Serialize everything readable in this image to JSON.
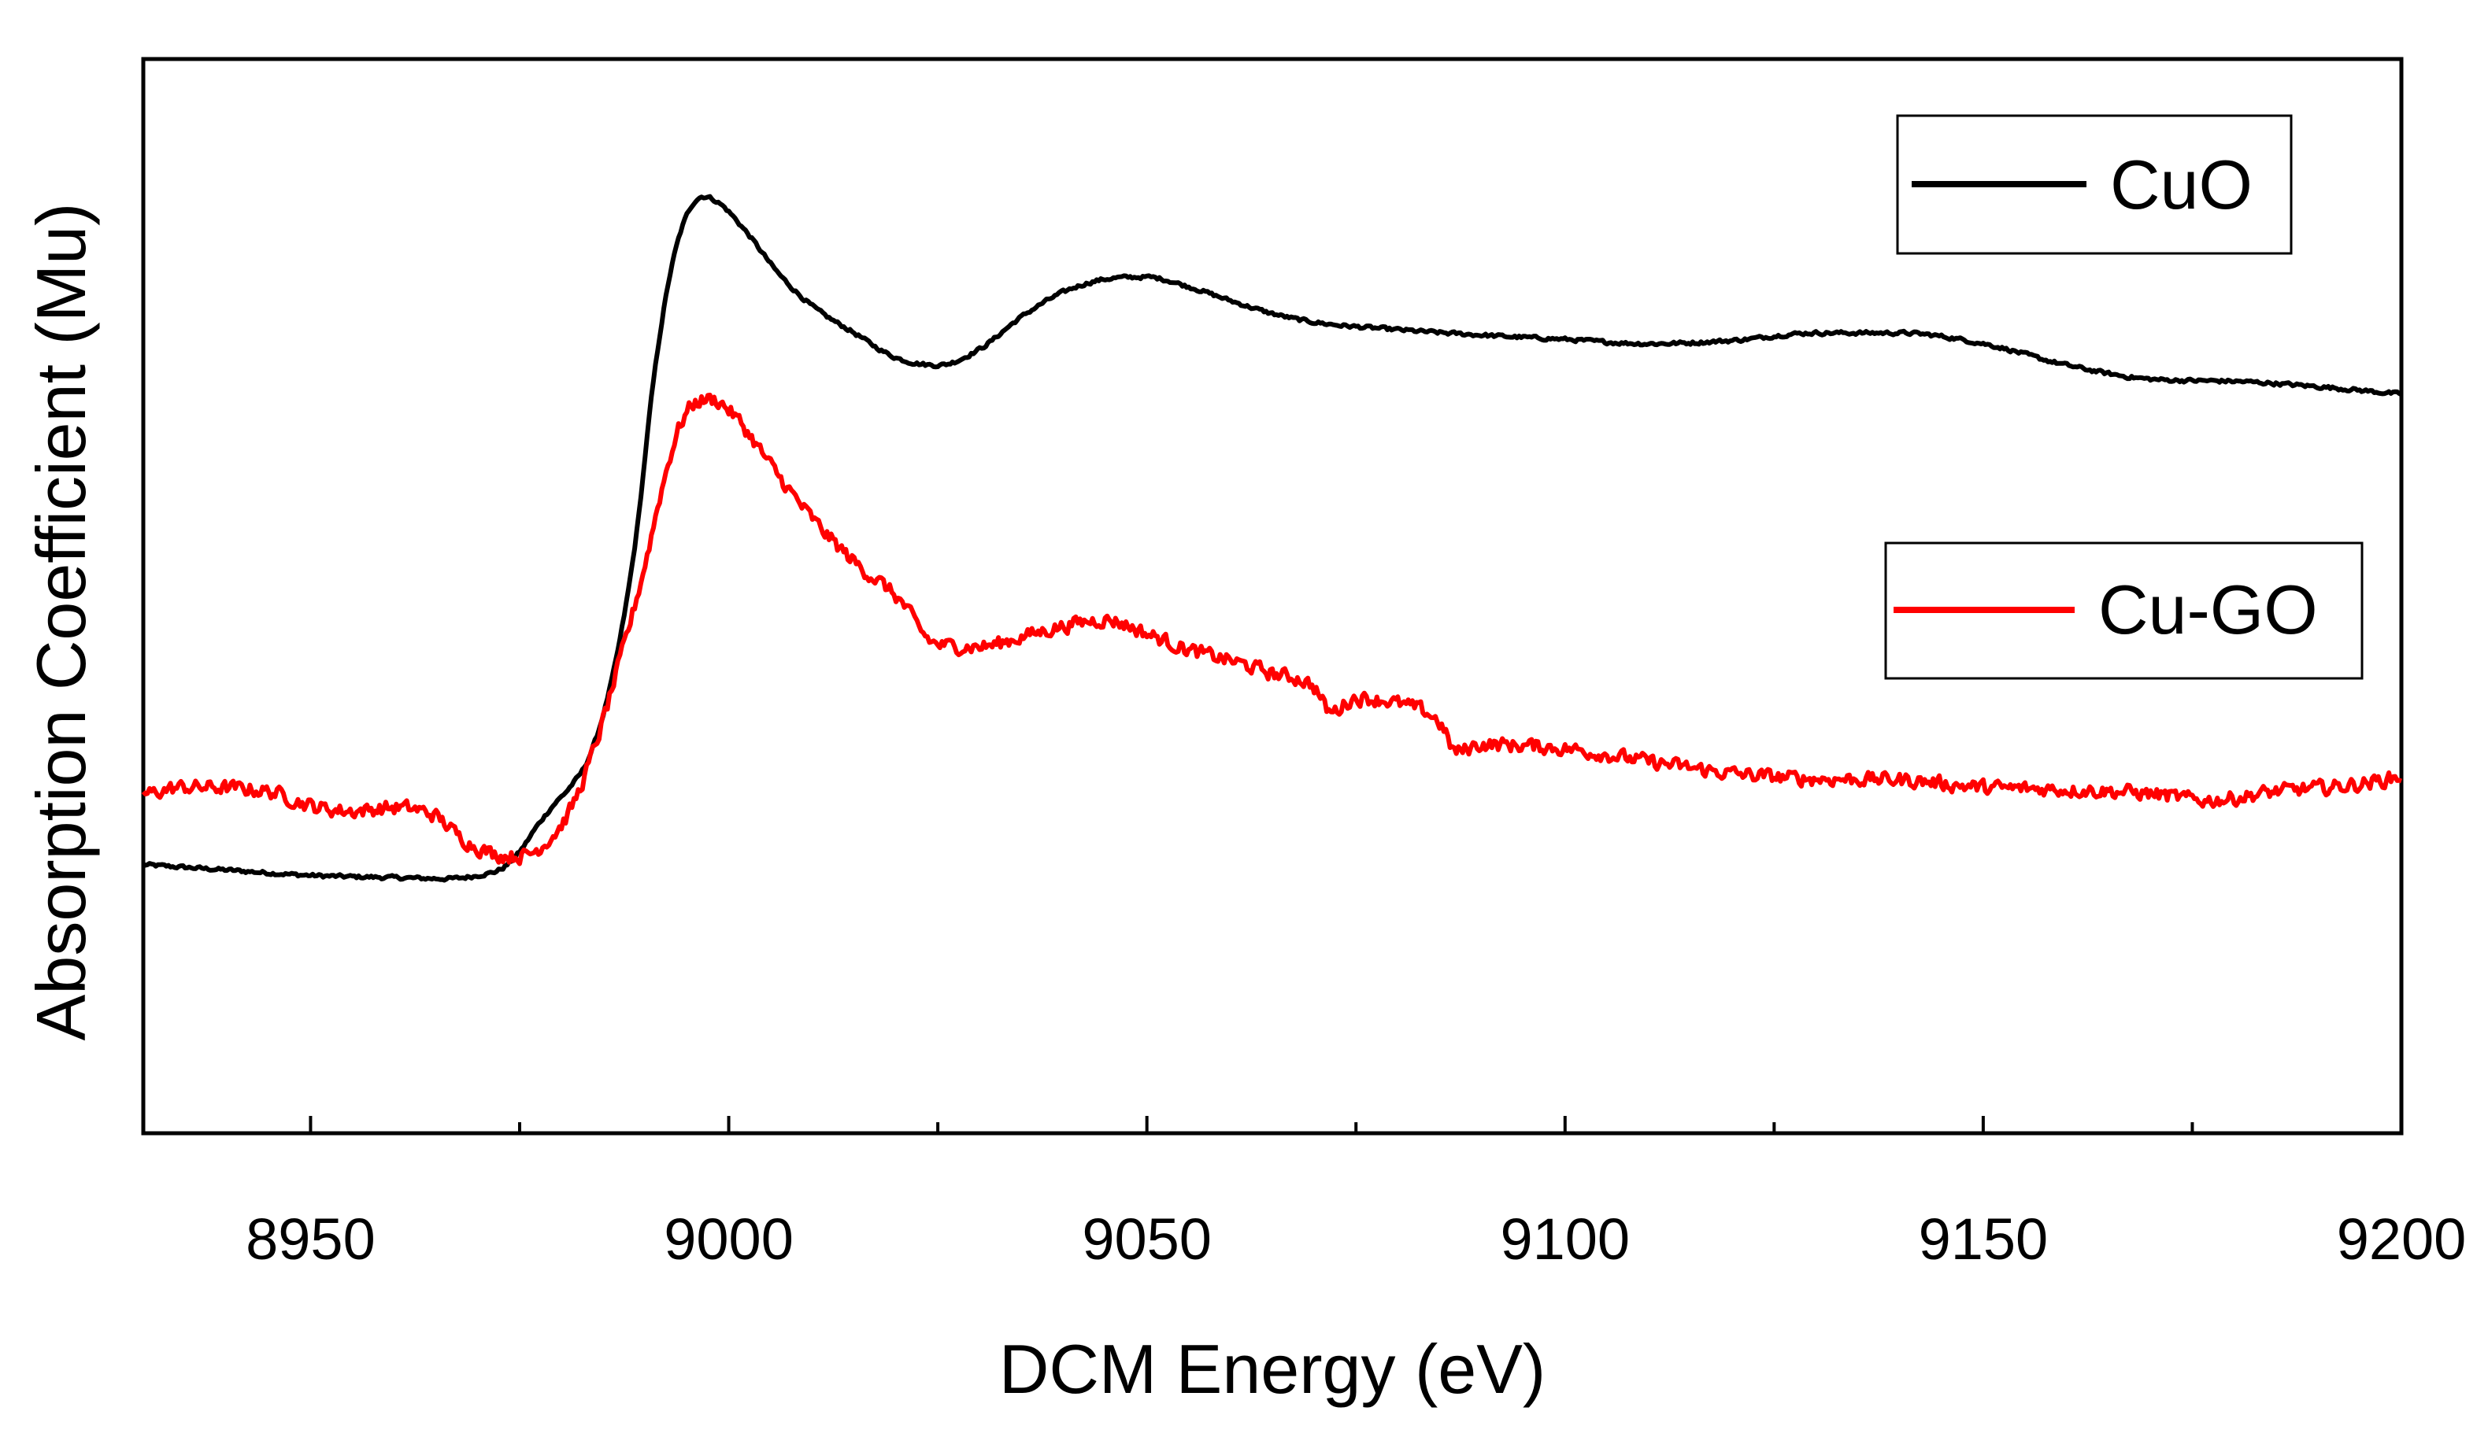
{
  "chart_data": {
    "type": "line",
    "title": "",
    "xlabel": "DCM Energy (eV)",
    "ylabel": "Absorption Coefficient (Mu)",
    "xlim": [
      8930,
      9200
    ],
    "ylim": [
      0,
      1
    ],
    "x_ticks": [
      8950,
      9000,
      9050,
      9100,
      9150,
      9200
    ],
    "x_tick_labels": [
      "8950",
      "9000",
      "9050",
      "9100",
      "9150",
      "9200"
    ],
    "y_ticks_labeled": false,
    "grid": false,
    "legend": "right, separate boxes per series",
    "series": [
      {
        "name": "CuO",
        "color": "#000000",
        "noise": 0.0015,
        "points": [
          [
            8930,
            0.25
          ],
          [
            8940,
            0.245
          ],
          [
            8950,
            0.24
          ],
          [
            8960,
            0.238
          ],
          [
            8966,
            0.237
          ],
          [
            8970,
            0.24
          ],
          [
            8973,
            0.247
          ],
          [
            8975,
            0.262
          ],
          [
            8977,
            0.285
          ],
          [
            8979,
            0.305
          ],
          [
            8981,
            0.322
          ],
          [
            8983,
            0.345
          ],
          [
            8985,
            0.39
          ],
          [
            8987,
            0.46
          ],
          [
            8989,
            0.56
          ],
          [
            8991,
            0.7
          ],
          [
            8993,
            0.8
          ],
          [
            8995,
            0.855
          ],
          [
            8997,
            0.872
          ],
          [
            8999,
            0.865
          ],
          [
            9002,
            0.84
          ],
          [
            9006,
            0.8
          ],
          [
            9010,
            0.77
          ],
          [
            9015,
            0.745
          ],
          [
            9020,
            0.722
          ],
          [
            9025,
            0.715
          ],
          [
            9030,
            0.73
          ],
          [
            9035,
            0.76
          ],
          [
            9040,
            0.783
          ],
          [
            9045,
            0.795
          ],
          [
            9050,
            0.797
          ],
          [
            9055,
            0.788
          ],
          [
            9060,
            0.775
          ],
          [
            9065,
            0.763
          ],
          [
            9070,
            0.755
          ],
          [
            9080,
            0.748
          ],
          [
            9090,
            0.743
          ],
          [
            9100,
            0.739
          ],
          [
            9110,
            0.735
          ],
          [
            9120,
            0.738
          ],
          [
            9130,
            0.745
          ],
          [
            9140,
            0.745
          ],
          [
            9150,
            0.735
          ],
          [
            9160,
            0.715
          ],
          [
            9170,
            0.702
          ],
          [
            9180,
            0.7
          ],
          [
            9190,
            0.695
          ],
          [
            9200,
            0.688
          ]
        ]
      },
      {
        "name": "Cu-GO",
        "color": "#ff0000",
        "noise": 0.006,
        "points": [
          [
            8930,
            0.315
          ],
          [
            8935,
            0.322
          ],
          [
            8945,
            0.318
          ],
          [
            8950,
            0.305
          ],
          [
            8955,
            0.3
          ],
          [
            8960,
            0.303
          ],
          [
            8965,
            0.295
          ],
          [
            8968,
            0.275
          ],
          [
            8972,
            0.26
          ],
          [
            8975,
            0.258
          ],
          [
            8978,
            0.27
          ],
          [
            8981,
            0.3
          ],
          [
            8984,
            0.36
          ],
          [
            8987,
            0.44
          ],
          [
            8990,
            0.53
          ],
          [
            8992,
            0.6
          ],
          [
            8994,
            0.655
          ],
          [
            8996,
            0.68
          ],
          [
            8998,
            0.683
          ],
          [
            9001,
            0.665
          ],
          [
            9005,
            0.622
          ],
          [
            9010,
            0.572
          ],
          [
            9015,
            0.532
          ],
          [
            9020,
            0.5
          ],
          [
            9025,
            0.455
          ],
          [
            9030,
            0.453
          ],
          [
            9035,
            0.462
          ],
          [
            9040,
            0.472
          ],
          [
            9045,
            0.478
          ],
          [
            9050,
            0.465
          ],
          [
            9055,
            0.45
          ],
          [
            9060,
            0.44
          ],
          [
            9065,
            0.428
          ],
          [
            9070,
            0.415
          ],
          [
            9072,
            0.392
          ],
          [
            9075,
            0.405
          ],
          [
            9080,
            0.4
          ],
          [
            9085,
            0.382
          ],
          [
            9087,
            0.355
          ],
          [
            9090,
            0.362
          ],
          [
            9100,
            0.358
          ],
          [
            9110,
            0.346
          ],
          [
            9120,
            0.335
          ],
          [
            9130,
            0.33
          ],
          [
            9140,
            0.329
          ],
          [
            9150,
            0.322
          ],
          [
            9160,
            0.32
          ],
          [
            9170,
            0.316
          ],
          [
            9177,
            0.31
          ],
          [
            9185,
            0.318
          ],
          [
            9195,
            0.325
          ],
          [
            9200,
            0.332
          ]
        ]
      }
    ]
  }
}
